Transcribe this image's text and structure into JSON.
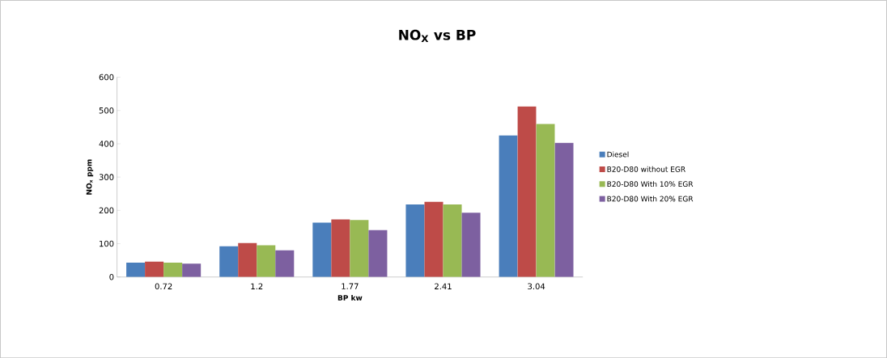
{
  "chart_data": {
    "type": "bar",
    "title": "NO$_{X}$ vs BP",
    "xlabel": "BP kw",
    "ylabel": "NO$_{x}$ ppm",
    "categories": [
      "0.72",
      "1.2",
      "1.77",
      "2.41",
      "3.04"
    ],
    "series": [
      {
        "name": "Diesel",
        "color": "#4a7ebb",
        "values": [
          43,
          92,
          163,
          218,
          425
        ]
      },
      {
        "name": "B20-D80 without EGR",
        "color": "#be4b48",
        "values": [
          46,
          102,
          173,
          226,
          512
        ]
      },
      {
        "name": "B20-D80 With 10% EGR",
        "color": "#98b954",
        "values": [
          43,
          95,
          171,
          218,
          460
        ]
      },
      {
        "name": "B20-D80 With 20% EGR",
        "color": "#7d60a0",
        "values": [
          40,
          80,
          141,
          193,
          403
        ]
      }
    ],
    "ylim": [
      0,
      600
    ],
    "yticks": [
      0,
      100,
      200,
      300,
      400,
      500,
      600
    ],
    "legend": "right",
    "grid": false
  }
}
